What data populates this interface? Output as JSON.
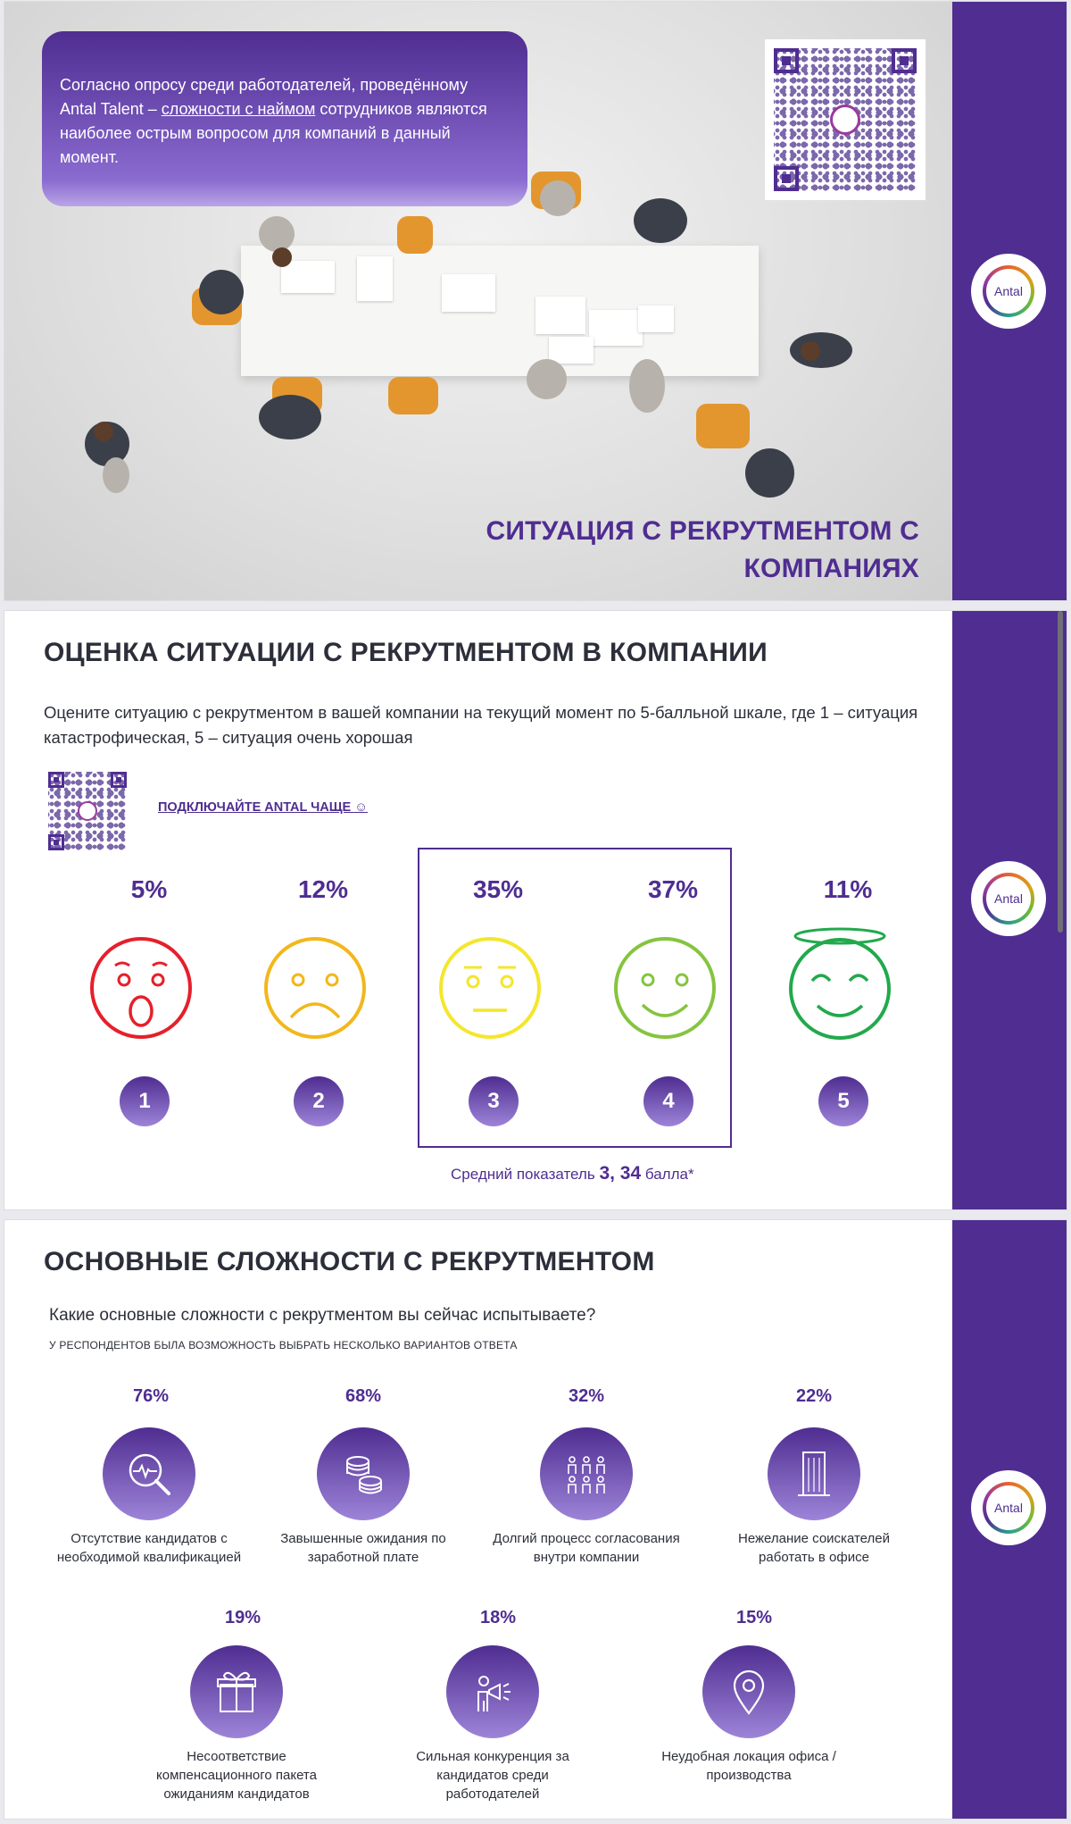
{
  "slide1": {
    "intro_before": "Согласно опросу среди работодателей, проведённому Antal Talent – ",
    "intro_link": "сложности с наймом",
    "intro_after": " сотрудников являются наиболее острым вопросом для компаний в данный момент.",
    "title_line1": "СИТУАЦИЯ С РЕКРУТМЕНТОМ С",
    "title_line2": "КОМПАНИЯХ",
    "logo_text": "Antal"
  },
  "slide2": {
    "title": "ОЦЕНКА СИТУАЦИИ С РЕКРУТМЕНТОМ В КОМПАНИИ",
    "question": "Оцените ситуацию с рекрутментом в вашей компании на текущий момент по 5-балльной шкале, где 1 – ситуация катастрофическая, 5 – ситуация очень хорошая",
    "connect_link": "ПОДКЛЮЧАЙТЕ ANTAL ЧАЩЕ ☺",
    "ratings": [
      {
        "score": "1",
        "percent": "5%",
        "color": "#e5202b",
        "face": "shocked"
      },
      {
        "score": "2",
        "percent": "12%",
        "color": "#f2b71b",
        "face": "sad"
      },
      {
        "score": "3",
        "percent": "35%",
        "color": "#f4e62c",
        "face": "neutral"
      },
      {
        "score": "4",
        "percent": "37%",
        "color": "#86c440",
        "face": "smile"
      },
      {
        "score": "5",
        "percent": "11%",
        "color": "#22a94c",
        "face": "angel"
      }
    ],
    "avg_prefix": "Средний показатель ",
    "avg_value": "3, 34",
    "avg_suffix": " балла*",
    "logo_text": "Antal"
  },
  "slide3": {
    "title": "ОСНОВНЫЕ СЛОЖНОСТИ С РЕКРУТМЕНТОМ",
    "question": "Какие основные сложности с рекрутментом вы сейчас испытываете?",
    "note": "У РЕСПОНДЕНТОВ БЫЛА ВОЗМОЖНОСТЬ ВЫБРАТЬ НЕСКОЛЬКО ВАРИАНТОВ ОТВЕТА",
    "items": [
      {
        "percent": "76%",
        "label": "Отсутствие кандидатов с необходимой квалификацией",
        "icon": "magnifier-chart-icon"
      },
      {
        "percent": "68%",
        "label": "Завышенные ожидания по заработной плате",
        "icon": "coins-icon"
      },
      {
        "percent": "32%",
        "label": "Долгий процесс согласования внутри компании",
        "icon": "people-group-icon"
      },
      {
        "percent": "22%",
        "label": "Нежелание соискателей работать в офисе",
        "icon": "office-building-icon"
      },
      {
        "percent": "19%",
        "label": "Несоответствие компенсационного пакета ожиданиям кандидатов",
        "icon": "gift-icon"
      },
      {
        "percent": "18%",
        "label": "Сильная конкуренция за кандидатов среди работодателей",
        "icon": "megaphone-person-icon"
      },
      {
        "percent": "15%",
        "label": "Неудобная локация офиса / производства",
        "icon": "location-pin-icon"
      }
    ],
    "logo_text": "Antal"
  },
  "colors": {
    "brand": "#4f2d91",
    "brand_light": "#9d84d8"
  }
}
